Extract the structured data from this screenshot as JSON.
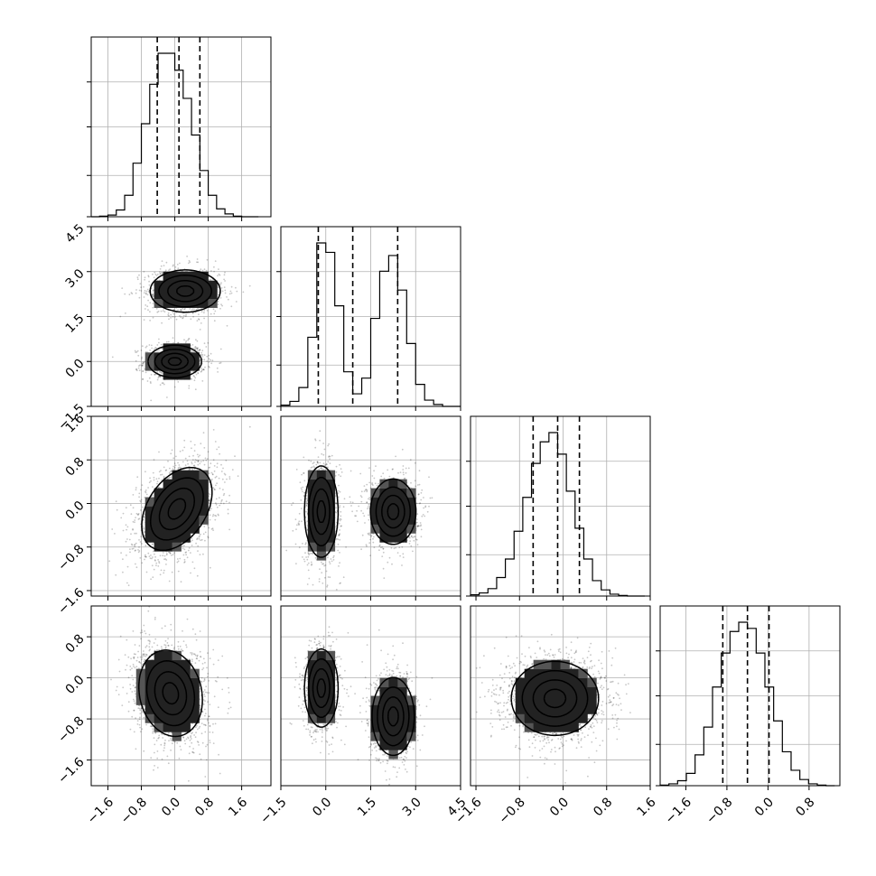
{
  "chart_data": {
    "type": "corner",
    "grid": true,
    "parameters": [
      {
        "range": [
          -2.0,
          2.3
        ],
        "ticks": [
          -1.6,
          -0.8,
          0.0,
          0.8,
          1.6
        ],
        "tick_labels": [
          "−1.6",
          "−0.8",
          "0.0",
          "0.8",
          "1.6"
        ],
        "quantiles": [
          -0.42,
          0.1,
          0.6
        ],
        "hist_edges": [
          -2.0,
          -1.8,
          -1.6,
          -1.4,
          -1.2,
          -1.0,
          -0.8,
          -0.6,
          -0.4,
          -0.2,
          0.0,
          0.2,
          0.4,
          0.6,
          0.8,
          1.0,
          1.2,
          1.4,
          1.6,
          1.8,
          2.0
        ],
        "hist_counts": [
          0,
          1,
          3,
          12,
          38,
          95,
          165,
          235,
          290,
          290,
          260,
          210,
          145,
          82,
          38,
          14,
          5,
          1,
          0,
          0
        ]
      },
      {
        "range": [
          -1.5,
          4.5
        ],
        "ticks": [
          -1.5,
          0.0,
          1.5,
          3.0,
          4.5
        ],
        "tick_labels": [
          "−1.5",
          "0.0",
          "1.5",
          "3.0",
          "4.5"
        ],
        "quantiles": [
          -0.25,
          0.9,
          2.4
        ],
        "hist_edges": [
          -1.5,
          -1.2,
          -0.9,
          -0.6,
          -0.3,
          0.0,
          0.3,
          0.6,
          0.9,
          1.2,
          1.5,
          1.8,
          2.1,
          2.4,
          2.7,
          3.0,
          3.3,
          3.6,
          3.9,
          4.2,
          4.5
        ],
        "hist_counts": [
          2,
          8,
          30,
          110,
          260,
          245,
          160,
          55,
          20,
          45,
          140,
          215,
          240,
          185,
          100,
          35,
          10,
          3,
          0,
          0
        ]
      },
      {
        "range": [
          -1.7,
          1.6
        ],
        "ticks": [
          -1.6,
          -0.8,
          0.0,
          0.8,
          1.6
        ],
        "tick_labels": [
          "−1.6",
          "−0.8",
          "0.0",
          "0.8",
          "1.6"
        ],
        "quantiles": [
          -0.55,
          -0.1,
          0.3
        ],
        "hist_edges": [
          -1.7,
          -1.54,
          -1.38,
          -1.22,
          -1.06,
          -0.9,
          -0.74,
          -0.58,
          -0.42,
          -0.26,
          -0.1,
          0.06,
          0.22,
          0.38,
          0.54,
          0.7,
          0.86,
          1.02,
          1.18,
          1.34,
          1.5
        ],
        "hist_counts": [
          2,
          5,
          12,
          30,
          60,
          105,
          160,
          215,
          250,
          265,
          230,
          170,
          110,
          60,
          25,
          10,
          3,
          1,
          0,
          0
        ]
      },
      {
        "range": [
          -2.1,
          1.4
        ],
        "ticks": [
          -1.6,
          -0.8,
          0.0,
          0.8
        ],
        "tick_labels": [
          "−1.6",
          "−0.8",
          "0.0",
          "0.8"
        ],
        "quantiles": [
          -0.88,
          -0.4,
          0.02
        ],
        "hist_edges": [
          -2.1,
          -1.93,
          -1.76,
          -1.59,
          -1.42,
          -1.25,
          -1.08,
          -0.91,
          -0.74,
          -0.57,
          -0.4,
          -0.23,
          -0.06,
          0.11,
          0.28,
          0.45,
          0.62,
          0.79,
          0.96,
          1.13,
          1.3
        ],
        "hist_counts": [
          1,
          3,
          8,
          20,
          50,
          95,
          160,
          215,
          250,
          265,
          255,
          215,
          160,
          105,
          55,
          25,
          10,
          3,
          1,
          0
        ]
      }
    ],
    "joint": [
      {
        "x": 0,
        "y": 1,
        "modes": [
          {
            "cx": 0.0,
            "cy": 0.0,
            "sx": 0.32,
            "sy": 0.27,
            "rho": 0.0,
            "w": 0.5
          },
          {
            "cx": 0.25,
            "cy": 2.35,
            "sx": 0.42,
            "sy": 0.35,
            "rho": 0.0,
            "w": 0.5
          }
        ]
      },
      {
        "x": 0,
        "y": 2,
        "modes": [
          {
            "cx": 0.05,
            "cy": -0.1,
            "sx": 0.42,
            "sy": 0.38,
            "rho": 0.4,
            "w": 1.0
          }
        ]
      },
      {
        "x": 1,
        "y": 2,
        "modes": [
          {
            "cx": -0.15,
            "cy": -0.15,
            "sx": 0.28,
            "sy": 0.42,
            "rho": 0.0,
            "w": 0.5
          },
          {
            "cx": 2.25,
            "cy": -0.15,
            "sx": 0.38,
            "sy": 0.3,
            "rho": 0.0,
            "w": 0.5
          }
        ]
      },
      {
        "x": 0,
        "y": 3,
        "modes": [
          {
            "cx": -0.1,
            "cy": -0.3,
            "sx": 0.38,
            "sy": 0.42,
            "rho": -0.15,
            "w": 1.0
          }
        ]
      },
      {
        "x": 1,
        "y": 3,
        "modes": [
          {
            "cx": -0.15,
            "cy": -0.2,
            "sx": 0.28,
            "sy": 0.38,
            "rho": 0.0,
            "w": 0.5
          },
          {
            "cx": 2.25,
            "cy": -0.75,
            "sx": 0.35,
            "sy": 0.38,
            "rho": 0.0,
            "w": 0.5
          }
        ]
      },
      {
        "x": 2,
        "y": 3,
        "modes": [
          {
            "cx": -0.15,
            "cy": -0.4,
            "sx": 0.4,
            "sy": 0.36,
            "rho": 0.0,
            "w": 1.0
          }
        ]
      }
    ],
    "contour_levels": [
      0.5,
      1.0,
      1.5,
      2.0
    ]
  }
}
